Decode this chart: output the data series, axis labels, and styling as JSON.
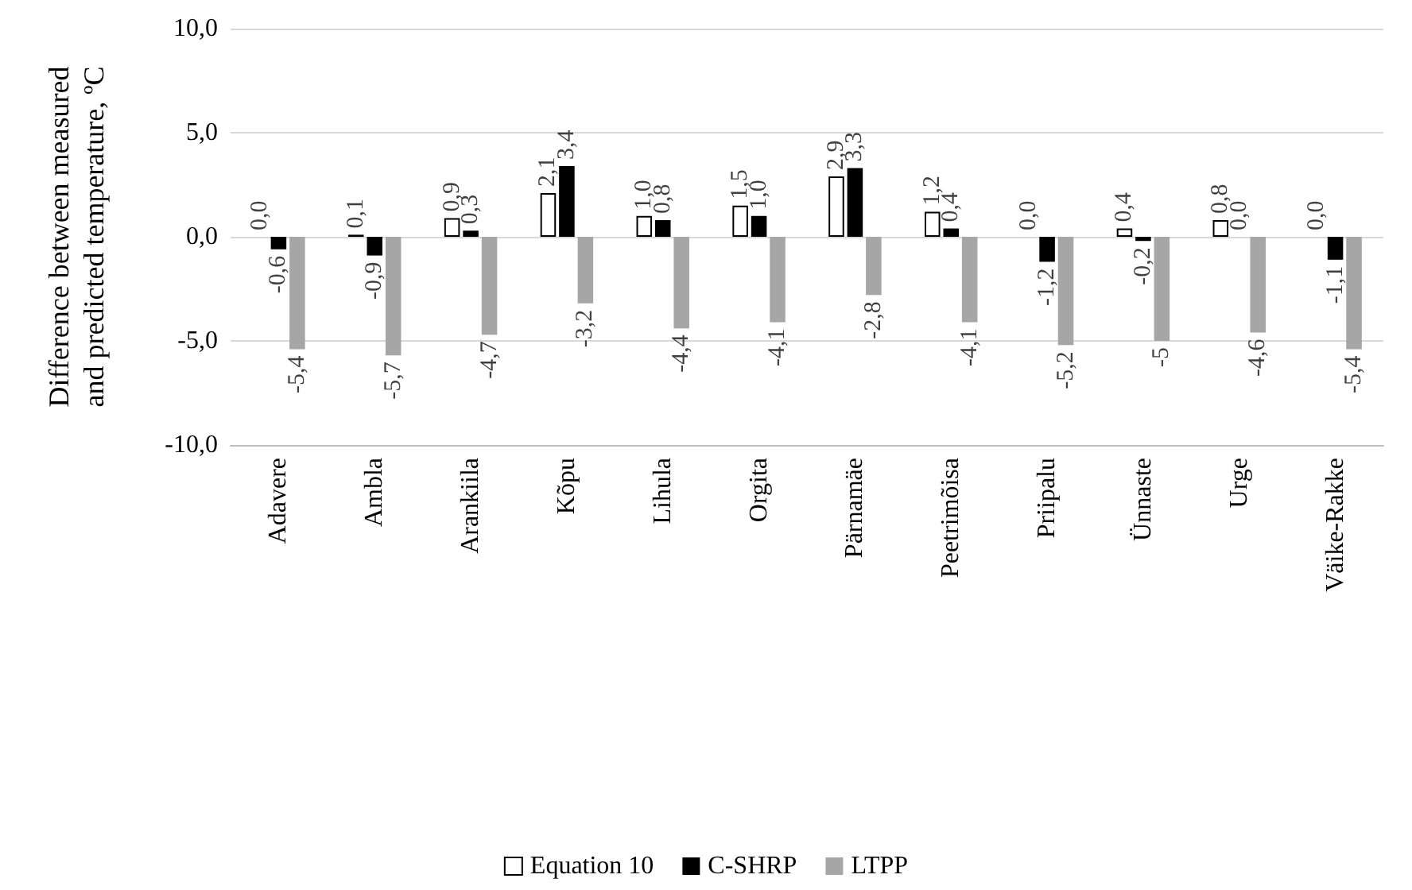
{
  "chart_data": {
    "type": "bar",
    "ylabel": "Difference between measured and predicted temperature, ºC",
    "categories": [
      "Adavere",
      "Ambla",
      "Arankiila",
      "Kõpu",
      "Lihula",
      "Orgita",
      "Pärnamäe",
      "Peetrimõisa",
      "Priipalu",
      "Ünnaste",
      "Urge",
      "Väike-Rakke"
    ],
    "series": [
      {
        "name": "Equation 10",
        "color": "#ffffff",
        "values": [
          0.0,
          0.1,
          0.9,
          2.1,
          1.0,
          1.5,
          2.9,
          1.2,
          0.0,
          0.4,
          0.8,
          0.0
        ],
        "value_labels": [
          "0,0",
          "0,1",
          "0,9",
          "2,1",
          "1,0",
          "1,5",
          "2,9",
          "1,2",
          "0,0",
          "0,4",
          "0,8",
          "0,0"
        ]
      },
      {
        "name": "C-SHRP",
        "color": "#000000",
        "values": [
          -0.6,
          -0.9,
          0.3,
          3.4,
          0.8,
          1.0,
          3.3,
          0.4,
          -1.2,
          -0.2,
          0.0,
          -1.1
        ],
        "value_labels": [
          "-0,6",
          "-0,9",
          "0,3",
          "3,4",
          "0,8",
          "1,0",
          "3,3",
          "0,4",
          "-1,2",
          "-0,2",
          "0,0",
          "-1,1"
        ]
      },
      {
        "name": "LTPP",
        "color": "#a6a6a6",
        "values": [
          -5.4,
          -5.7,
          -4.7,
          -3.2,
          -4.4,
          -4.1,
          -2.8,
          -4.1,
          -5.2,
          -5,
          -4.6,
          -5.4
        ],
        "value_labels": [
          "-5,4",
          "-5,7",
          "-4,7",
          "-3,2",
          "-4,4",
          "-4,1",
          "-2,8",
          "-4,1",
          "-5,2",
          "-5",
          "-4,6",
          "-5,4"
        ]
      }
    ],
    "ylim": [
      -10,
      10
    ],
    "yticks": [
      {
        "value": -10,
        "label": "-10,0"
      },
      {
        "value": -5,
        "label": "-5,0"
      },
      {
        "value": 0,
        "label": "0,0"
      },
      {
        "value": 5,
        "label": "5,0"
      },
      {
        "value": 10,
        "label": "10,0"
      }
    ],
    "grid": "y",
    "legend": "bottom"
  }
}
